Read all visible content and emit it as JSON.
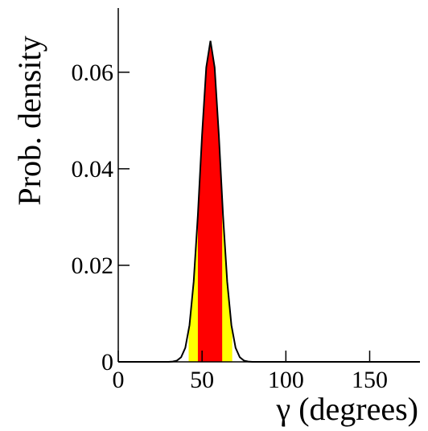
{
  "chart_data": {
    "type": "line",
    "x_label": "γ (degrees)",
    "y_label": "Prob. density",
    "x": [
      0,
      30,
      32.5,
      35,
      37.5,
      40,
      42.5,
      45,
      47.5,
      50,
      52.5,
      55,
      57.5,
      60,
      62.5,
      65,
      67.5,
      70,
      72.5,
      75,
      77.5,
      80,
      180
    ],
    "series": [
      {
        "color": "#000000",
        "values": [
          0,
          1e-05,
          6e-05,
          0.00026,
          0.00095,
          0.0029,
          0.0076,
          0.0166,
          0.0304,
          0.047,
          0.061,
          0.0665,
          0.061,
          0.047,
          0.0304,
          0.0166,
          0.0076,
          0.0029,
          0.00095,
          0.00026,
          6e-05,
          1e-05,
          0
        ]
      }
    ],
    "intervals": [
      {
        "range": [
          42,
          68
        ],
        "color": "#ffff00"
      },
      {
        "range": [
          47.5,
          62
        ],
        "color": "#ff0000"
      }
    ],
    "xlim": [
      0,
      180
    ],
    "xticks": [
      0,
      50,
      100,
      150
    ],
    "ylim": [
      0,
      0.0733
    ],
    "yticks": [
      0,
      0.02,
      0.04,
      0.06
    ]
  }
}
